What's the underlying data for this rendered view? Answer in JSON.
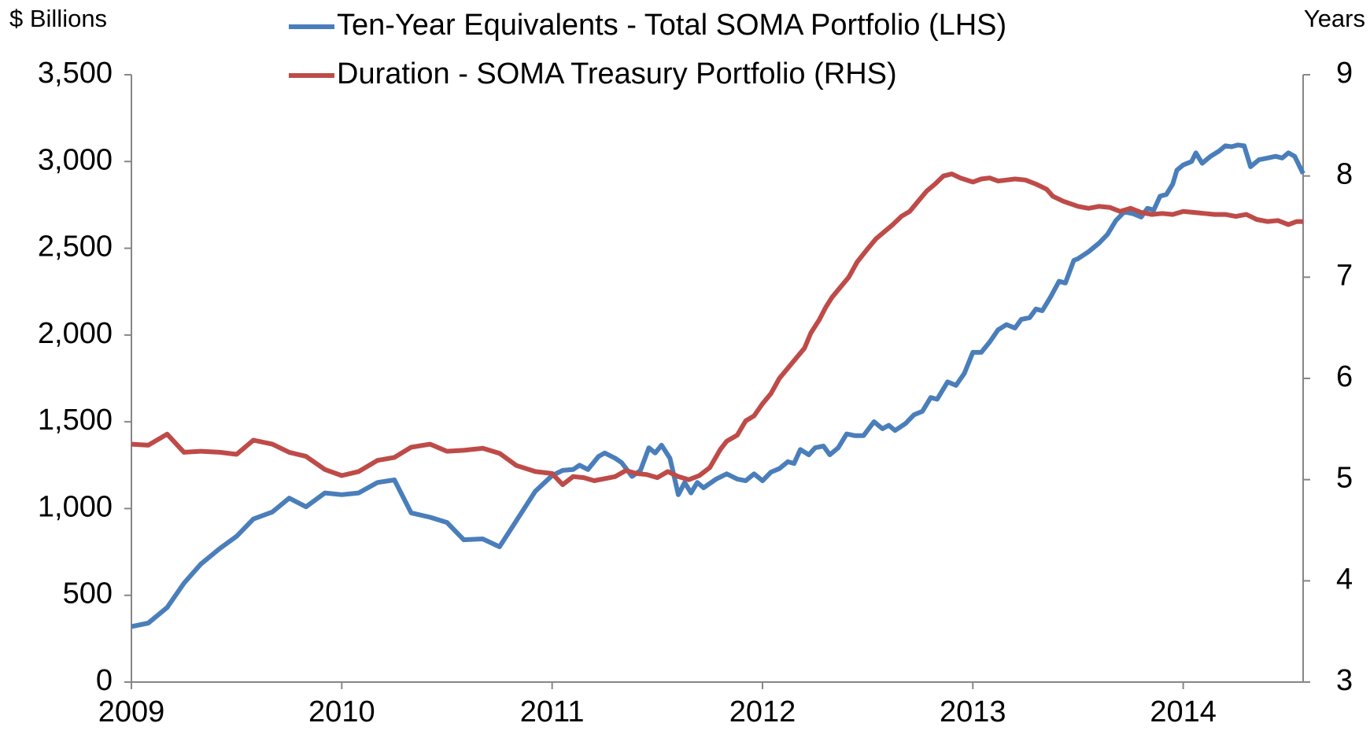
{
  "chart_data": {
    "type": "line",
    "y_label": "$ Billions",
    "y2_label": "Years",
    "xlim": [
      2009,
      2014.57
    ],
    "xticks": [
      2009,
      2010,
      2011,
      2012,
      2013,
      2014
    ],
    "ylim": [
      0,
      3500
    ],
    "yticks": [
      0,
      500,
      {
        "value": 1000,
        "label": "1,000"
      },
      {
        "value": 1500,
        "label": "1,500"
      },
      {
        "value": 2000,
        "label": "2,000"
      },
      {
        "value": 2500,
        "label": "2,500"
      },
      {
        "value": 3000,
        "label": "3,000"
      },
      {
        "value": 3500,
        "label": "3,500"
      }
    ],
    "y2lim": [
      3,
      9
    ],
    "y2ticks": [
      3,
      4,
      5,
      6,
      7,
      8,
      9
    ],
    "series": [
      {
        "name": "Ten-Year Equivalents - Total SOMA Portfolio (LHS)",
        "color": "#4a7ebb",
        "x": [
          2009.0,
          2009.08,
          2009.17,
          2009.25,
          2009.33,
          2009.42,
          2009.5,
          2009.58,
          2009.67,
          2009.75,
          2009.83,
          2009.92,
          2010.0,
          2010.08,
          2010.17,
          2010.25,
          2010.33,
          2010.42,
          2010.5,
          2010.58,
          2010.67,
          2010.75,
          2010.83,
          2010.92,
          2011.0,
          2011.05,
          2011.1,
          2011.13,
          2011.17,
          2011.22,
          2011.25,
          2011.3,
          2011.33,
          2011.38,
          2011.42,
          2011.46,
          2011.49,
          2011.52,
          2011.56,
          2011.6,
          2011.63,
          2011.66,
          2011.69,
          2011.72,
          2011.78,
          2011.83,
          2011.88,
          2011.92,
          2011.96,
          2012.0,
          2012.04,
          2012.08,
          2012.12,
          2012.15,
          2012.18,
          2012.22,
          2012.25,
          2012.29,
          2012.32,
          2012.36,
          2012.4,
          2012.44,
          2012.48,
          2012.53,
          2012.57,
          2012.6,
          2012.63,
          2012.68,
          2012.72,
          2012.76,
          2012.8,
          2012.83,
          2012.88,
          2012.92,
          2012.96,
          2013.0,
          2013.04,
          2013.08,
          2013.12,
          2013.16,
          2013.2,
          2013.23,
          2013.27,
          2013.3,
          2013.33,
          2013.37,
          2013.41,
          2013.44,
          2013.48,
          2013.5,
          2013.55,
          2013.6,
          2013.64,
          2013.68,
          2013.72,
          2013.76,
          2013.8,
          2013.83,
          2013.86,
          2013.89,
          2013.92,
          2013.95,
          2013.97,
          2014.0,
          2014.04,
          2014.06,
          2014.09,
          2014.13,
          2014.17,
          2014.2,
          2014.23,
          2014.26,
          2014.29,
          2014.32,
          2014.36,
          2014.4,
          2014.44,
          2014.47,
          2014.5,
          2014.53,
          2014.57
        ],
        "values": [
          320,
          340,
          430,
          570,
          680,
          770,
          840,
          940,
          980,
          1060,
          1010,
          1090,
          1080,
          1090,
          1150,
          1165,
          975,
          950,
          920,
          820,
          825,
          780,
          930,
          1100,
          1190,
          1220,
          1225,
          1250,
          1225,
          1300,
          1320,
          1290,
          1265,
          1185,
          1220,
          1350,
          1320,
          1365,
          1290,
          1080,
          1150,
          1090,
          1150,
          1120,
          1170,
          1200,
          1170,
          1160,
          1200,
          1160,
          1210,
          1230,
          1270,
          1260,
          1340,
          1310,
          1350,
          1360,
          1310,
          1350,
          1430,
          1420,
          1420,
          1500,
          1460,
          1480,
          1450,
          1490,
          1540,
          1560,
          1640,
          1630,
          1730,
          1710,
          1780,
          1900,
          1900,
          1960,
          2030,
          2060,
          2040,
          2090,
          2100,
          2150,
          2140,
          2220,
          2310,
          2300,
          2430,
          2440,
          2480,
          2530,
          2580,
          2660,
          2710,
          2700,
          2680,
          2730,
          2720,
          2800,
          2810,
          2870,
          2950,
          2980,
          3000,
          3050,
          2990,
          3030,
          3060,
          3090,
          3085,
          3095,
          3090,
          2970,
          3010,
          3020,
          3030,
          3020,
          3050,
          3030,
          2930
        ]
      },
      {
        "name": "Duration - SOMA Treasury Portfolio (RHS)",
        "color": "#be4b48",
        "axis": "y2",
        "x": [
          2009.0,
          2009.08,
          2009.17,
          2009.25,
          2009.33,
          2009.42,
          2009.5,
          2009.58,
          2009.67,
          2009.75,
          2009.83,
          2009.92,
          2010.0,
          2010.08,
          2010.17,
          2010.25,
          2010.33,
          2010.42,
          2010.5,
          2010.58,
          2010.67,
          2010.75,
          2010.83,
          2010.92,
          2011.0,
          2011.05,
          2011.1,
          2011.15,
          2011.2,
          2011.25,
          2011.3,
          2011.35,
          2011.4,
          2011.45,
          2011.5,
          2011.55,
          2011.6,
          2011.65,
          2011.7,
          2011.75,
          2011.8,
          2011.83,
          2011.88,
          2011.92,
          2011.96,
          2012.0,
          2012.04,
          2012.08,
          2012.12,
          2012.16,
          2012.2,
          2012.23,
          2012.27,
          2012.3,
          2012.33,
          2012.37,
          2012.41,
          2012.45,
          2012.5,
          2012.54,
          2012.58,
          2012.62,
          2012.66,
          2012.7,
          2012.74,
          2012.78,
          2012.82,
          2012.86,
          2012.9,
          2012.94,
          2013.0,
          2013.04,
          2013.08,
          2013.12,
          2013.16,
          2013.2,
          2013.25,
          2013.3,
          2013.35,
          2013.38,
          2013.43,
          2013.5,
          2013.55,
          2013.6,
          2013.65,
          2013.7,
          2013.75,
          2013.8,
          2013.85,
          2013.9,
          2013.95,
          2014.0,
          2014.05,
          2014.1,
          2014.15,
          2014.2,
          2014.25,
          2014.3,
          2014.35,
          2014.4,
          2014.45,
          2014.5,
          2014.54,
          2014.57
        ],
        "values": [
          5.35,
          5.34,
          5.45,
          5.27,
          5.28,
          5.27,
          5.25,
          5.39,
          5.35,
          5.27,
          5.23,
          5.1,
          5.04,
          5.08,
          5.19,
          5.22,
          5.32,
          5.35,
          5.28,
          5.29,
          5.31,
          5.26,
          5.14,
          5.08,
          5.06,
          4.95,
          5.03,
          5.02,
          4.99,
          5.01,
          5.03,
          5.09,
          5.06,
          5.05,
          5.02,
          5.08,
          5.03,
          5.0,
          5.04,
          5.12,
          5.3,
          5.38,
          5.44,
          5.58,
          5.63,
          5.75,
          5.85,
          6.0,
          6.1,
          6.2,
          6.3,
          6.45,
          6.58,
          6.7,
          6.8,
          6.9,
          7.0,
          7.15,
          7.28,
          7.38,
          7.45,
          7.52,
          7.6,
          7.65,
          7.75,
          7.85,
          7.92,
          8.0,
          8.02,
          7.98,
          7.94,
          7.97,
          7.98,
          7.95,
          7.96,
          7.97,
          7.96,
          7.92,
          7.87,
          7.8,
          7.75,
          7.7,
          7.68,
          7.7,
          7.69,
          7.65,
          7.68,
          7.64,
          7.62,
          7.63,
          7.62,
          7.65,
          7.64,
          7.63,
          7.62,
          7.62,
          7.6,
          7.62,
          7.57,
          7.55,
          7.56,
          7.52,
          7.55,
          7.55
        ]
      }
    ]
  }
}
